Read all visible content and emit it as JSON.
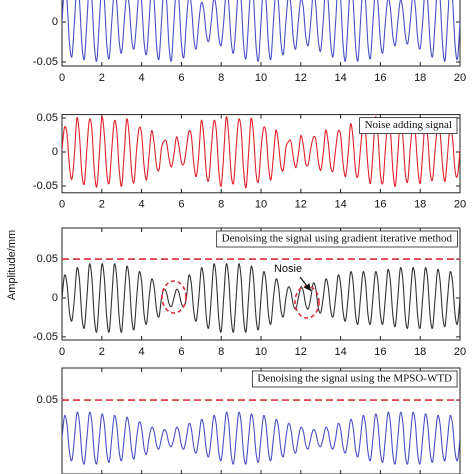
{
  "chart_data": {
    "type": "line",
    "y_label": "Amplitude/mm",
    "xlim": [
      0,
      20
    ],
    "xticks": [
      0,
      2,
      4,
      6,
      8,
      10,
      12,
      14,
      16,
      18,
      20
    ],
    "x": [
      0,
      0.125,
      0.25,
      0.375,
      0.5,
      0.625,
      0.75,
      0.875,
      1,
      1.125,
      1.25,
      1.375,
      1.5,
      1.625,
      1.75,
      1.875,
      2,
      2.125,
      2.25,
      2.375,
      2.5,
      2.625,
      2.75,
      2.875,
      3,
      3.125,
      3.25,
      3.375,
      3.5,
      3.625,
      3.75,
      3.875,
      4,
      4.125,
      4.25,
      4.375,
      4.5,
      4.625,
      4.75,
      4.875,
      5,
      5.125,
      5.25,
      5.375,
      5.5,
      5.625,
      5.75,
      5.875,
      6,
      6.125,
      6.25,
      6.375,
      6.5,
      6.625,
      6.75,
      6.875,
      7,
      7.125,
      7.25,
      7.375,
      7.5,
      7.625,
      7.75,
      7.875,
      8,
      8.125,
      8.25,
      8.375,
      8.5,
      8.625,
      8.75,
      8.875,
      9,
      9.125,
      9.25,
      9.375,
      9.5,
      9.625,
      9.75,
      9.875,
      10,
      10.125,
      10.25,
      10.375,
      10.5,
      10.625,
      10.75,
      10.875,
      11,
      11.125,
      11.25,
      11.375,
      11.5,
      11.625,
      11.75,
      11.875,
      12,
      12.125,
      12.25,
      12.375,
      12.5,
      12.625,
      12.75,
      12.875,
      13,
      13.125,
      13.25,
      13.375,
      13.5,
      13.625,
      13.75,
      13.875,
      14,
      14.125,
      14.25,
      14.375,
      14.5,
      14.625,
      14.75,
      14.875,
      15,
      15.125,
      15.25,
      15.375,
      15.5,
      15.625,
      15.75,
      15.875,
      16,
      16.125,
      16.25,
      16.375,
      16.5,
      16.625,
      16.75,
      16.875,
      17,
      17.125,
      17.25,
      17.375,
      17.5,
      17.625,
      17.75,
      17.875,
      18,
      18.125,
      18.25,
      18.375,
      18.5,
      18.625,
      18.75,
      18.875,
      19,
      19.125,
      19.25,
      19.375,
      19.5,
      19.625,
      19.75,
      19.875,
      20
    ],
    "panels": [
      {
        "color": "#4b4fc6",
        "ylim": [
          -0.055,
          0.07
        ],
        "yticks": [
          -0.05,
          0
        ],
        "values": [
          0,
          0.043,
          0.026,
          -0.026,
          -0.043,
          0,
          0.046,
          0.028,
          -0.028,
          -0.046,
          0,
          0.048,
          0.029,
          -0.029,
          -0.048,
          0,
          0.045,
          0.028,
          -0.028,
          -0.045,
          0,
          0.038,
          0.024,
          -0.024,
          -0.038,
          0,
          0.033,
          0.021,
          -0.021,
          -0.033,
          0,
          0.04,
          0.025,
          -0.025,
          -0.04,
          0,
          0.046,
          0.028,
          -0.028,
          -0.046,
          0,
          0.048,
          0.029,
          -0.029,
          -0.048,
          0,
          0.044,
          0.027,
          -0.027,
          -0.044,
          0,
          0.033,
          0.021,
          -0.021,
          -0.033,
          0,
          0.024,
          0.015,
          -0.015,
          -0.024,
          0,
          0.029,
          0.018,
          -0.018,
          -0.029,
          0,
          0.038,
          0.024,
          -0.024,
          -0.038,
          0,
          0.045,
          0.028,
          -0.028,
          -0.045,
          0,
          0.048,
          0.029,
          -0.029,
          -0.048,
          0,
          0.046,
          0.028,
          -0.028,
          -0.046,
          0,
          0.04,
          0.025,
          -0.025,
          -0.04,
          0,
          0.033,
          0.021,
          -0.021,
          -0.033,
          0,
          0.029,
          0.018,
          -0.018,
          -0.029,
          0,
          0.036,
          0.022,
          -0.022,
          -0.036,
          0,
          0.043,
          0.026,
          -0.026,
          -0.043,
          0,
          0.048,
          0.029,
          -0.029,
          -0.048,
          0,
          0.048,
          0.029,
          -0.029,
          -0.048,
          0,
          0.045,
          0.028,
          -0.028,
          -0.045,
          0,
          0.038,
          0.024,
          -0.024,
          -0.038,
          0,
          0.029,
          0.018,
          -0.018,
          -0.029,
          0,
          0.027,
          0.016,
          -0.016,
          -0.027,
          0,
          0.033,
          0.021,
          -0.021,
          -0.033,
          0,
          0.043,
          0.026,
          -0.026,
          -0.043,
          0,
          0.048,
          0.029,
          -0.029,
          -0.048,
          0,
          0.046,
          0.028,
          -0.028,
          -0.046,
          0
        ]
      },
      {
        "name": "Noise adding signal",
        "color": "#e0202a",
        "ylim": [
          -0.06,
          0.055
        ],
        "yticks": [
          -0.05,
          0,
          0.05
        ],
        "values": [
          0.004,
          0.036,
          0.027,
          -0.021,
          -0.04,
          -0.003,
          0.05,
          0.025,
          -0.032,
          -0.046,
          0.005,
          0.047,
          0.034,
          -0.028,
          -0.051,
          -0.004,
          0.051,
          0.026,
          -0.031,
          -0.045,
          0.003,
          0.045,
          0.032,
          -0.026,
          -0.05,
          -0.002,
          0.048,
          0.025,
          -0.03,
          -0.044,
          0.004,
          0.035,
          0.027,
          -0.021,
          -0.041,
          -0.005,
          0.031,
          0.014,
          -0.02,
          -0.026,
          0.006,
          0.016,
          0.015,
          -0.009,
          -0.022,
          -0.004,
          0.022,
          0.009,
          -0.015,
          -0.017,
          0.005,
          0.03,
          0.024,
          -0.018,
          -0.036,
          -0.003,
          0.046,
          0.023,
          -0.03,
          -0.041,
          0.004,
          0.045,
          0.033,
          -0.026,
          -0.05,
          -0.004,
          0.051,
          0.025,
          -0.032,
          -0.045,
          0.005,
          0.047,
          0.034,
          -0.027,
          -0.052,
          -0.003,
          0.049,
          0.025,
          -0.031,
          -0.043,
          0.004,
          0.035,
          0.028,
          -0.02,
          -0.041,
          -0.005,
          0.032,
          0.013,
          -0.021,
          -0.026,
          0.006,
          0.015,
          0.016,
          -0.008,
          -0.023,
          -0.004,
          0.024,
          0.01,
          -0.017,
          -0.018,
          0.005,
          0.021,
          0.019,
          -0.012,
          -0.027,
          -0.003,
          0.032,
          0.015,
          -0.021,
          -0.027,
          0.004,
          0.03,
          0.025,
          -0.017,
          -0.036,
          -0.004,
          0.041,
          0.02,
          -0.027,
          -0.035,
          0.005,
          0.04,
          0.031,
          -0.022,
          -0.046,
          -0.003,
          0.051,
          0.026,
          -0.032,
          -0.045,
          0.004,
          0.045,
          0.033,
          -0.026,
          -0.05,
          -0.004,
          0.049,
          0.024,
          -0.031,
          -0.043,
          0.005,
          0.04,
          0.03,
          -0.022,
          -0.046,
          -0.003,
          0.046,
          0.023,
          -0.029,
          -0.04,
          0.004,
          0.037,
          0.029,
          -0.021,
          -0.043,
          -0.004,
          0.04,
          0.02,
          -0.027,
          -0.035,
          0.003
        ]
      },
      {
        "name": "Denoising the signal using gradient iterative method",
        "color": "#333333",
        "ylim": [
          -0.054,
          0.09
        ],
        "yticks": [
          -0.05,
          0,
          0.05
        ],
        "threshold": 0.05,
        "threshold_color": "#d9303c",
        "annotation": "Nosie",
        "values": [
          0,
          0.029,
          0.018,
          -0.018,
          -0.029,
          0,
          0.038,
          0.024,
          -0.024,
          -0.038,
          0,
          0.043,
          0.026,
          -0.026,
          -0.043,
          0,
          0.043,
          0.026,
          -0.026,
          -0.043,
          0,
          0.043,
          0.026,
          -0.026,
          -0.043,
          0,
          0.04,
          0.025,
          -0.025,
          -0.04,
          0,
          0.033,
          0.021,
          -0.021,
          -0.033,
          0,
          0.024,
          0.015,
          -0.015,
          -0.024,
          0,
          0.011,
          0.007,
          -0.007,
          -0.011,
          0,
          0.011,
          0.007,
          -0.007,
          -0.011,
          0,
          0.029,
          0.018,
          -0.018,
          -0.029,
          0,
          0.038,
          0.024,
          -0.024,
          -0.038,
          0,
          0.043,
          0.026,
          -0.026,
          -0.043,
          0,
          0.043,
          0.026,
          -0.026,
          -0.043,
          0,
          0.043,
          0.026,
          -0.026,
          -0.043,
          0,
          0.04,
          0.025,
          -0.025,
          -0.04,
          0,
          0.033,
          0.021,
          -0.021,
          -0.033,
          0,
          0.024,
          0.015,
          -0.015,
          -0.024,
          0,
          0.014,
          0.009,
          -0.009,
          -0.014,
          0,
          0.014,
          0.009,
          -0.009,
          -0.014,
          0,
          0.019,
          0.012,
          -0.012,
          -0.019,
          0,
          0.024,
          0.015,
          -0.015,
          -0.024,
          0,
          0.029,
          0.018,
          -0.018,
          -0.029,
          0,
          0.033,
          0.021,
          -0.021,
          -0.033,
          0,
          0.033,
          0.021,
          -0.021,
          -0.033,
          0,
          0.033,
          0.021,
          -0.021,
          -0.033,
          0,
          0.036,
          0.022,
          -0.022,
          -0.036,
          0,
          0.038,
          0.024,
          -0.024,
          -0.038,
          0,
          0.038,
          0.024,
          -0.024,
          -0.038,
          0,
          0.038,
          0.024,
          -0.024,
          -0.038,
          0,
          0.036,
          0.022,
          -0.022,
          -0.036,
          0,
          0.033,
          0.021,
          -0.021,
          -0.033,
          0
        ]
      },
      {
        "name": "Denoising the signal using the MPSO-WTD",
        "color": "#4b4fc6",
        "ylim": [
          -0.047,
          0.092
        ],
        "yticks": [
          0.05
        ],
        "threshold": 0.05,
        "threshold_color": "#d9303c",
        "values": [
          0,
          0.029,
          0.018,
          -0.018,
          -0.029,
          0,
          0.033,
          0.021,
          -0.021,
          -0.033,
          0,
          0.033,
          0.021,
          -0.021,
          -0.033,
          0,
          0.031,
          0.019,
          -0.019,
          -0.031,
          0,
          0.029,
          0.018,
          -0.018,
          -0.029,
          0,
          0.027,
          0.016,
          -0.016,
          -0.027,
          0,
          0.021,
          0.013,
          -0.013,
          -0.021,
          0,
          0.014,
          0.009,
          -0.009,
          -0.014,
          0,
          0.011,
          0.007,
          -0.007,
          -0.011,
          0,
          0.014,
          0.009,
          -0.009,
          -0.014,
          0,
          0.019,
          0.012,
          -0.012,
          -0.019,
          0,
          0.024,
          0.015,
          -0.015,
          -0.024,
          0,
          0.029,
          0.018,
          -0.018,
          -0.029,
          0,
          0.033,
          0.021,
          -0.021,
          -0.033,
          0,
          0.033,
          0.021,
          -0.021,
          -0.033,
          0,
          0.031,
          0.019,
          -0.019,
          -0.031,
          0,
          0.029,
          0.018,
          -0.018,
          -0.029,
          0,
          0.024,
          0.015,
          -0.015,
          -0.024,
          0,
          0.019,
          0.012,
          -0.012,
          -0.019,
          0,
          0.014,
          0.009,
          -0.009,
          -0.014,
          0,
          0.011,
          0.007,
          -0.007,
          -0.011,
          0,
          0.014,
          0.009,
          -0.009,
          -0.014,
          0,
          0.019,
          0.012,
          -0.012,
          -0.019,
          0,
          0.024,
          0.015,
          -0.015,
          -0.024,
          0,
          0.029,
          0.018,
          -0.018,
          -0.029,
          0,
          0.031,
          0.019,
          -0.019,
          -0.031,
          0,
          0.033,
          0.021,
          -0.021,
          -0.033,
          0,
          0.033,
          0.021,
          -0.021,
          -0.033,
          0,
          0.033,
          0.021,
          -0.021,
          -0.033,
          0,
          0.031,
          0.019,
          -0.019,
          -0.031,
          0,
          0.029,
          0.018,
          -0.018,
          -0.029,
          0,
          0.029,
          0.018,
          -0.018,
          -0.029,
          0
        ]
      }
    ]
  }
}
